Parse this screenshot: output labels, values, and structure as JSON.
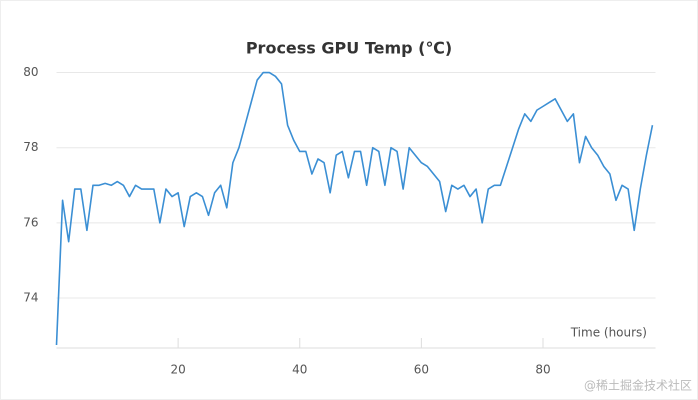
{
  "chart_data": {
    "type": "line",
    "title": "Process GPU Temp (℃)",
    "x_label": "Time (hours)",
    "watermark": "@稀土掘金技术社区",
    "x": [
      0,
      1,
      2,
      3,
      4,
      5,
      6,
      7,
      8,
      9,
      10,
      11,
      12,
      13,
      14,
      15,
      16,
      17,
      18,
      19,
      20,
      21,
      22,
      23,
      24,
      25,
      26,
      27,
      28,
      29,
      30,
      31,
      32,
      33,
      34,
      35,
      36,
      37,
      38,
      39,
      40,
      41,
      42,
      43,
      44,
      45,
      46,
      47,
      48,
      49,
      50,
      51,
      52,
      53,
      54,
      55,
      56,
      57,
      58,
      59,
      60,
      61,
      62,
      63,
      64,
      65,
      66,
      67,
      68,
      69,
      70,
      71,
      72,
      73,
      74,
      75,
      76,
      77,
      78,
      79,
      80,
      81,
      82,
      83,
      84,
      85,
      86,
      87,
      88,
      89,
      90,
      91,
      92,
      93,
      94,
      95,
      96,
      97,
      98
    ],
    "series": [
      {
        "name": "GPU Temp",
        "color": "#3b8fd4",
        "values": [
          72.75,
          76.6,
          75.5,
          76.9,
          76.9,
          75.8,
          77.0,
          77.0,
          77.05,
          77.0,
          77.1,
          77.0,
          76.7,
          77.0,
          76.9,
          76.9,
          76.9,
          76.0,
          76.9,
          76.7,
          76.8,
          75.9,
          76.7,
          76.8,
          76.7,
          76.2,
          76.8,
          77.0,
          76.4,
          77.6,
          78.0,
          78.6,
          79.2,
          79.8,
          80.0,
          80.0,
          79.9,
          79.7,
          78.6,
          78.2,
          77.9,
          77.9,
          77.3,
          77.7,
          77.6,
          76.8,
          77.8,
          77.9,
          77.2,
          77.9,
          77.9,
          77.0,
          78.0,
          77.9,
          77.0,
          78.0,
          77.9,
          76.9,
          78.0,
          77.8,
          77.6,
          77.5,
          77.3,
          77.1,
          76.3,
          77.0,
          76.9,
          77.0,
          76.7,
          76.9,
          76.0,
          76.9,
          77.0,
          77.0,
          77.5,
          78.0,
          78.5,
          78.9,
          78.7,
          79.0,
          79.1,
          79.2,
          79.3,
          79.0,
          78.7,
          78.9,
          77.6,
          78.3,
          78.0,
          77.8,
          77.5,
          77.3,
          76.6,
          77.0,
          76.9,
          75.8,
          76.9,
          77.8,
          78.6
        ]
      }
    ],
    "xlim": [
      0,
      98.5
    ],
    "xticks": [
      20,
      40,
      60,
      80
    ],
    "ylim": [
      72.67,
      80.6
    ],
    "yticks": [
      74,
      76,
      78,
      80
    ],
    "grid": true
  }
}
